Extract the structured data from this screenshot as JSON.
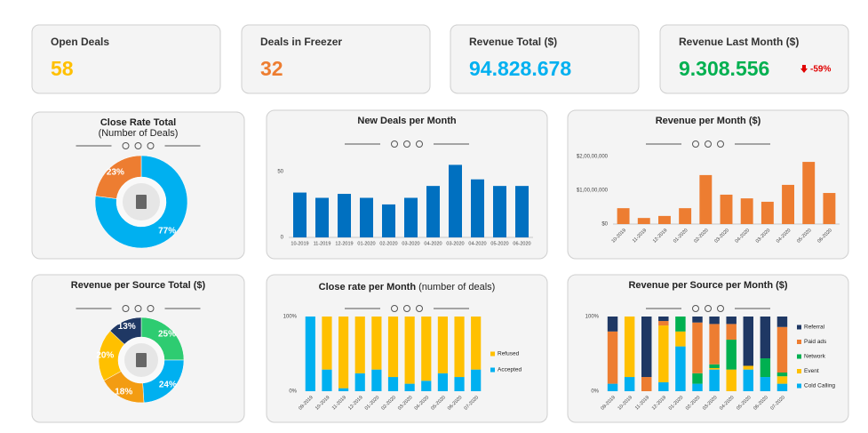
{
  "kpis": [
    {
      "label": "Open Deals",
      "value": "58"
    },
    {
      "label": "Deals in Freezer",
      "value": "32"
    },
    {
      "label": "Revenue Total ($)",
      "value": "94.828.678"
    },
    {
      "label": "Revenue Last Month ($)",
      "value": "9.308.556",
      "change": "-59%"
    }
  ],
  "chart_data": [
    {
      "type": "pie",
      "title": "Close Rate Total",
      "subtitle": "(Number of Deals)",
      "values": [
        77,
        23
      ],
      "value_labels": [
        "77%",
        "23%"
      ],
      "colors": [
        "#00b0f0",
        "#ed7d31"
      ]
    },
    {
      "type": "bar",
      "title": "New Deals per Month",
      "categories": [
        "10-2019",
        "11-2019",
        "12-2019",
        "01-2020",
        "02-2020",
        "03-2020",
        "04-2020",
        "03-2020",
        "04-2020",
        "05-2020",
        "06-2020"
      ],
      "values": [
        34,
        30,
        33,
        30,
        25,
        30,
        39,
        55,
        44,
        39,
        39
      ],
      "color": "#0070c0",
      "ylim": [
        0,
        60
      ],
      "yticks": [
        0,
        50
      ]
    },
    {
      "type": "bar",
      "title": "Revenue per Month ($)",
      "categories": [
        "10-2019",
        "11-2019",
        "12-2019",
        "01-2020",
        "02-2020",
        "03-2020",
        "04-2020",
        "03-2020",
        "04-2020",
        "05-2020",
        "06-2020"
      ],
      "values": [
        4700000,
        1800000,
        2400000,
        4700000,
        14500000,
        8700000,
        7600000,
        6600000,
        11600000,
        18400000,
        9200000
      ],
      "color": "#ed7d31",
      "ylim": [
        0,
        20000000
      ],
      "yticks": [
        {
          "value": 0,
          "label": "$0"
        },
        {
          "value": 10000000,
          "label": "$1,00,00,000"
        },
        {
          "value": 20000000,
          "label": "$2,00,00,000"
        }
      ]
    },
    {
      "type": "pie",
      "title": "Revenue per Source Total ($)",
      "values": [
        25,
        24,
        18,
        20,
        13
      ],
      "value_labels": [
        "25%",
        "24%",
        "18%",
        "20%",
        "13%"
      ],
      "colors": [
        "#2ecc71",
        "#00b0f0",
        "#f39c12",
        "#ffc000",
        "#1f3864"
      ]
    },
    {
      "type": "stacked_bar",
      "title": "Close rate per Month",
      "subtitle": "(number of deals)",
      "categories": [
        "09-2019",
        "10-2019",
        "11-2019",
        "12-2019",
        "01-2020",
        "02-2020",
        "03-2020",
        "04-2020",
        "05-2020",
        "06-2020",
        "07-2020"
      ],
      "series": [
        {
          "name": "Accepted",
          "color": "#00b0f0",
          "values": [
            100,
            29,
            4,
            24,
            29,
            19,
            10,
            14,
            24,
            19,
            29
          ]
        },
        {
          "name": "Refused",
          "color": "#ffc000",
          "values": [
            0,
            71,
            96,
            76,
            71,
            81,
            90,
            86,
            76,
            81,
            71
          ]
        }
      ],
      "ylim": [
        0,
        100
      ],
      "yticks": [
        {
          "value": 0,
          "label": "0%"
        },
        {
          "value": 100,
          "label": "100%"
        }
      ]
    },
    {
      "type": "stacked_bar",
      "title": "Revenue per Source per Month ($)",
      "categories": [
        "09-2019",
        "10-2019",
        "11-2019",
        "12-2019",
        "01-2020",
        "02-2020",
        "03-2020",
        "04-2020",
        "05-2020",
        "06-2020",
        "07-2020"
      ],
      "series": [
        {
          "name": "Cold Calling",
          "color": "#00b0f0",
          "values": [
            10,
            19,
            0,
            12,
            60,
            10,
            29,
            0,
            29,
            19,
            10
          ]
        },
        {
          "name": "Event",
          "color": "#ffc000",
          "values": [
            0,
            81,
            0,
            76,
            20,
            0,
            2,
            29,
            5,
            0,
            10
          ]
        },
        {
          "name": "Network",
          "color": "#00b050",
          "values": [
            0,
            0,
            0,
            0,
            20,
            14,
            5,
            40,
            0,
            25,
            5
          ]
        },
        {
          "name": "Paid ads",
          "color": "#ed7d31",
          "values": [
            70,
            0,
            19,
            6,
            0,
            68,
            54,
            21,
            0,
            0,
            61
          ]
        },
        {
          "name": "Referral",
          "color": "#1f3864",
          "values": [
            20,
            0,
            81,
            6,
            0,
            8,
            10,
            10,
            66,
            56,
            14
          ]
        }
      ],
      "ylim": [
        0,
        100
      ],
      "yticks": [
        {
          "value": 0,
          "label": "0%"
        },
        {
          "value": 100,
          "label": "100%"
        }
      ]
    }
  ]
}
